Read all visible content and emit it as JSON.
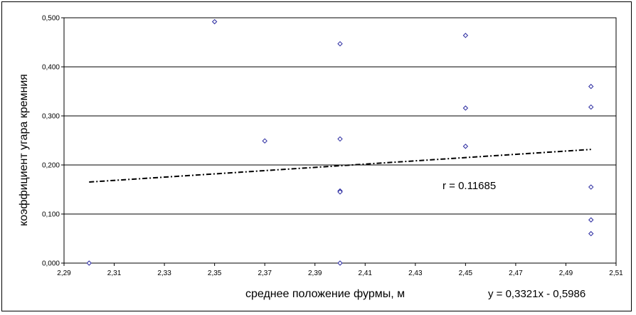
{
  "chart_data": {
    "type": "scatter",
    "xlabel": "среднее положение фурмы, м",
    "ylabel": "коэффициент угара кремния",
    "xlim": [
      2.29,
      2.51
    ],
    "ylim": [
      0.0,
      0.5
    ],
    "x_ticks": [
      "2,29",
      "2,31",
      "2,33",
      "2,35",
      "2,37",
      "2,39",
      "2,41",
      "2,43",
      "2,45",
      "2,47",
      "2,49",
      "2,51"
    ],
    "y_ticks": [
      "0,000",
      "0,100",
      "0,200",
      "0,300",
      "0,400",
      "0,500"
    ],
    "grid": "horizontal",
    "marker": "diamond",
    "marker_color": "#2a2aa0",
    "points": [
      {
        "x": 2.3,
        "y": 0.0
      },
      {
        "x": 2.35,
        "y": 0.492
      },
      {
        "x": 2.37,
        "y": 0.249
      },
      {
        "x": 2.4,
        "y": 0.447
      },
      {
        "x": 2.4,
        "y": 0.253
      },
      {
        "x": 2.4,
        "y": 0.147
      },
      {
        "x": 2.4,
        "y": 0.145
      },
      {
        "x": 2.4,
        "y": 0.0
      },
      {
        "x": 2.45,
        "y": 0.464
      },
      {
        "x": 2.45,
        "y": 0.316
      },
      {
        "x": 2.45,
        "y": 0.238
      },
      {
        "x": 2.5,
        "y": 0.36
      },
      {
        "x": 2.5,
        "y": 0.318
      },
      {
        "x": 2.5,
        "y": 0.155
      },
      {
        "x": 2.5,
        "y": 0.088
      },
      {
        "x": 2.5,
        "y": 0.06
      }
    ],
    "trendline": {
      "type": "linear",
      "slope": 0.3321,
      "intercept": -0.5986,
      "x_range": [
        2.3,
        2.5
      ],
      "equation_label": "y = 0,3321x - 0,5986"
    },
    "annotations": {
      "correlation": "r = 0.11685"
    }
  }
}
